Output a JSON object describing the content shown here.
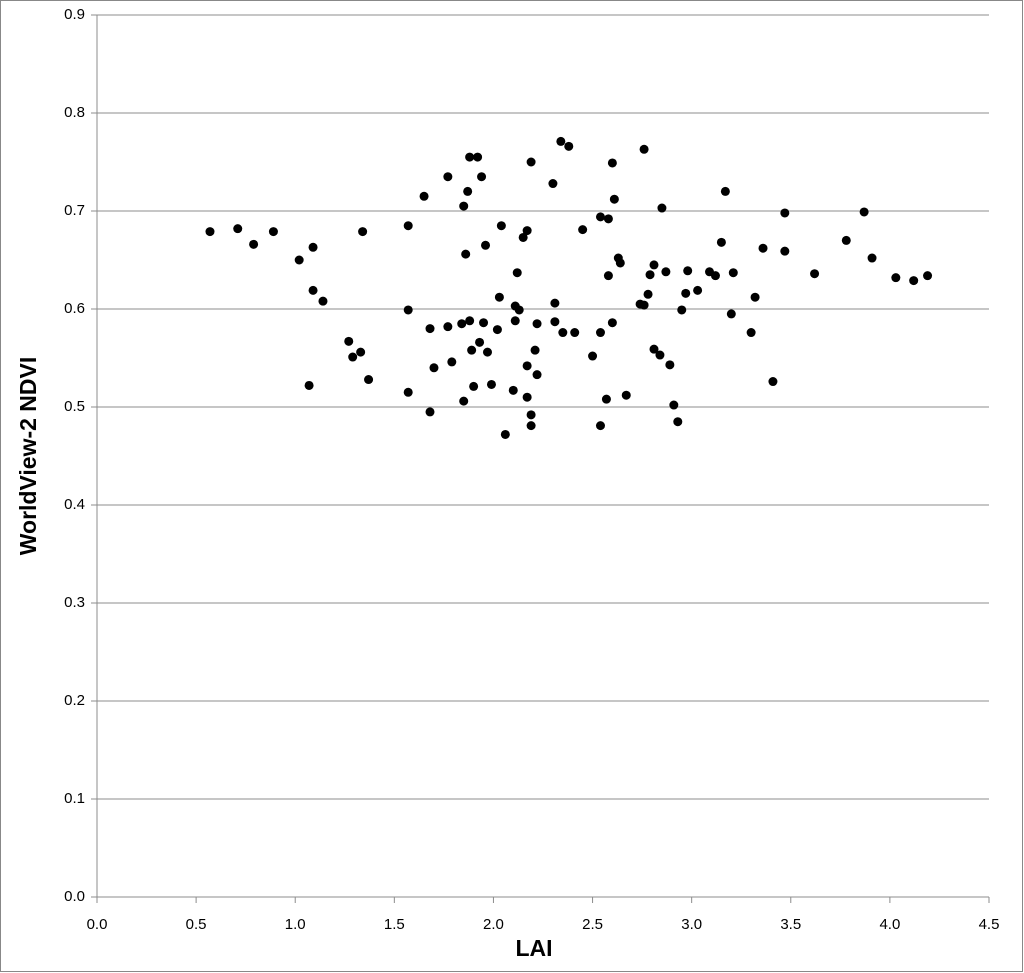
{
  "chart_data": {
    "type": "scatter",
    "x_label": "LAI",
    "y_label": "WorldView-2 NDVI",
    "x": [
      0.57,
      0.71,
      0.79,
      0.89,
      1.02,
      1.09,
      1.09,
      1.14,
      1.07,
      1.34,
      1.27,
      1.29,
      1.33,
      1.37,
      1.57,
      1.57,
      1.57,
      1.65,
      1.68,
      1.68,
      1.7,
      1.77,
      1.77,
      1.79,
      1.84,
      1.85,
      1.85,
      1.86,
      1.87,
      1.88,
      1.88,
      1.89,
      1.9,
      1.92,
      1.93,
      1.94,
      1.95,
      1.96,
      1.97,
      1.99,
      2.02,
      2.03,
      2.04,
      2.06,
      2.1,
      2.11,
      2.11,
      2.12,
      2.13,
      2.15,
      2.17,
      2.17,
      2.17,
      2.19,
      2.19,
      2.19,
      2.21,
      2.22,
      2.22,
      2.3,
      2.31,
      2.31,
      2.34,
      2.35,
      2.38,
      2.41,
      2.45,
      2.5,
      2.54,
      2.54,
      2.54,
      2.57,
      2.58,
      2.58,
      2.6,
      2.6,
      2.61,
      2.63,
      2.64,
      2.67,
      2.74,
      2.76,
      2.76,
      2.78,
      2.79,
      2.81,
      2.81,
      2.84,
      2.85,
      2.87,
      2.89,
      2.91,
      2.93,
      2.95,
      2.97,
      2.98,
      3.03,
      3.09,
      3.12,
      3.15,
      3.17,
      3.2,
      3.21,
      3.3,
      3.32,
      3.36,
      3.41,
      3.47,
      3.47,
      3.62,
      3.78,
      3.87,
      3.91,
      4.03,
      4.12,
      4.19
    ],
    "values": [
      0.679,
      0.682,
      0.666,
      0.679,
      0.65,
      0.663,
      0.619,
      0.608,
      0.522,
      0.679,
      0.567,
      0.551,
      0.556,
      0.528,
      0.685,
      0.599,
      0.515,
      0.715,
      0.58,
      0.495,
      0.54,
      0.582,
      0.735,
      0.546,
      0.585,
      0.705,
      0.506,
      0.656,
      0.72,
      0.755,
      0.588,
      0.558,
      0.521,
      0.755,
      0.566,
      0.735,
      0.586,
      0.665,
      0.556,
      0.523,
      0.579,
      0.612,
      0.685,
      0.472,
      0.517,
      0.588,
      0.603,
      0.637,
      0.599,
      0.673,
      0.542,
      0.51,
      0.68,
      0.75,
      0.492,
      0.481,
      0.558,
      0.585,
      0.533,
      0.728,
      0.587,
      0.606,
      0.771,
      0.576,
      0.766,
      0.576,
      0.681,
      0.552,
      0.694,
      0.576,
      0.481,
      0.508,
      0.634,
      0.692,
      0.749,
      0.586,
      0.712,
      0.652,
      0.647,
      0.512,
      0.605,
      0.604,
      0.763,
      0.615,
      0.635,
      0.645,
      0.559,
      0.553,
      0.703,
      0.638,
      0.543,
      0.502,
      0.485,
      0.599,
      0.616,
      0.639,
      0.619,
      0.638,
      0.634,
      0.668,
      0.72,
      0.595,
      0.637,
      0.576,
      0.612,
      0.662,
      0.526,
      0.698,
      0.659,
      0.636,
      0.67,
      0.699,
      0.652,
      0.632,
      0.629,
      0.634
    ],
    "color": "#000000",
    "xlim": [
      0,
      4.5
    ],
    "xticks": [
      {
        "value": 0,
        "label": "0.0"
      },
      0.5,
      {
        "value": 1,
        "label": "1.0"
      },
      1.5,
      {
        "value": 2,
        "label": "2.0"
      },
      2.5,
      {
        "value": 3,
        "label": "3.0"
      },
      3.5,
      {
        "value": 4,
        "label": "4.0"
      },
      4.5
    ],
    "ylim": [
      0,
      0.9
    ],
    "yticks": [
      {
        "value": 0,
        "label": "0.0"
      },
      0.1,
      0.2,
      0.3,
      0.4,
      0.5,
      0.6,
      0.7,
      0.8,
      0.9
    ],
    "grid": true
  }
}
